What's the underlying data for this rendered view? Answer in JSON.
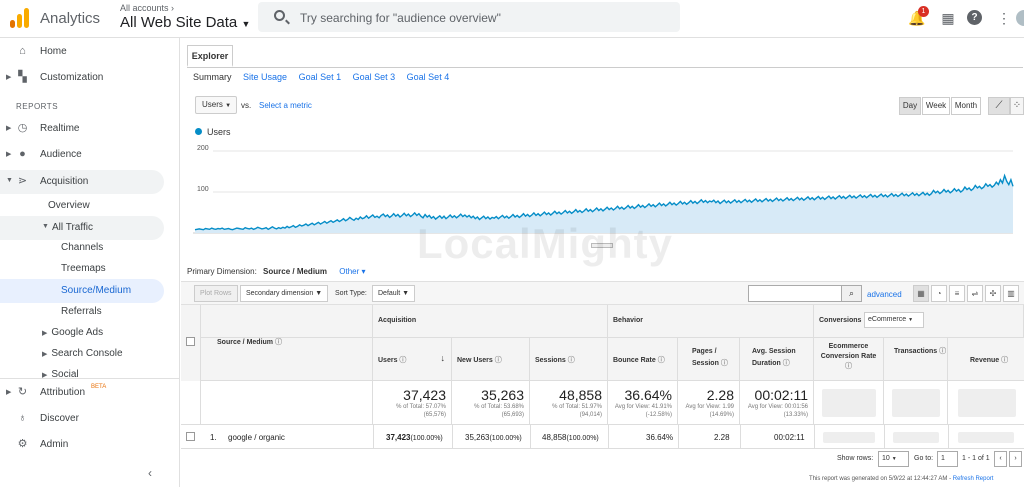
{
  "header": {
    "brand": "Analytics",
    "account_small": "All accounts ›",
    "account_name": "All Web Site Data",
    "search_placeholder": "Try searching for \"audience overview\"",
    "notification_count": "1",
    "icons": [
      "notifications-icon",
      "apps-icon",
      "help-icon",
      "more-vert-icon"
    ]
  },
  "sidebar": {
    "top_items": [
      {
        "label": "Home",
        "icon": "home-icon"
      },
      {
        "label": "Customization",
        "icon": "dashboard-icon"
      }
    ],
    "reports_heading": "REPORTS",
    "report_items": [
      {
        "label": "Realtime",
        "icon": "clock-icon"
      },
      {
        "label": "Audience",
        "icon": "person-icon"
      },
      {
        "label": "Acquisition",
        "icon": "acquisition-icon"
      }
    ],
    "acquisition_sub": {
      "overview": "Overview",
      "all_traffic": "All Traffic",
      "all_traffic_children": [
        "Channels",
        "Treemaps",
        "Source/Medium",
        "Referrals"
      ],
      "more": [
        "Google Ads",
        "Search Console",
        "Social"
      ]
    },
    "bottom_items": [
      {
        "label": "Attribution",
        "icon": "attribution-icon",
        "badge": "BETA"
      },
      {
        "label": "Discover",
        "icon": "lightbulb-icon"
      },
      {
        "label": "Admin",
        "icon": "gear-icon"
      }
    ]
  },
  "explorer": {
    "tab": "Explorer",
    "subtabs": [
      "Summary",
      "Site Usage",
      "Goal Set 1",
      "Goal Set 3",
      "Goal Set 4"
    ],
    "metric": "Users",
    "vs": "vs.",
    "select_metric": "Select a metric",
    "periods": [
      "Day",
      "Week",
      "Month"
    ],
    "active_period": "Day",
    "legend": "Users",
    "watermark": "LocalMighty"
  },
  "chart_data": {
    "type": "area",
    "title": "",
    "series": [
      {
        "name": "Users"
      }
    ],
    "y_ticks": [
      "200",
      "100"
    ],
    "ylim": [
      0,
      200
    ],
    "color": "#058dc7",
    "fill": "#d7eaf7",
    "values": [
      8,
      9,
      10,
      9,
      8,
      11,
      10,
      9,
      12,
      10,
      9,
      11,
      10,
      12,
      9,
      10,
      11,
      9,
      8,
      10,
      12,
      11,
      10,
      9,
      13,
      11,
      10,
      12,
      9,
      11,
      14,
      12,
      10,
      11,
      13,
      9,
      12,
      15,
      12,
      10,
      13,
      11,
      14,
      12,
      16,
      13,
      15,
      18,
      14,
      16,
      20,
      17,
      19,
      22,
      18,
      21,
      24,
      20,
      23,
      26,
      22,
      25,
      28,
      24,
      27,
      30,
      26,
      29,
      32,
      28,
      31,
      35,
      30,
      33,
      38,
      34,
      31,
      36,
      33,
      39,
      35,
      37,
      42,
      36,
      40,
      44,
      38,
      41,
      37,
      43,
      46,
      40,
      44,
      38,
      42,
      47,
      41,
      45,
      39,
      43,
      48,
      42,
      46,
      40,
      44,
      49,
      43,
      47,
      41,
      37,
      45,
      39,
      43,
      36,
      40,
      34,
      38,
      42,
      36,
      41,
      35,
      39,
      44,
      38,
      42,
      37,
      41,
      46,
      40,
      44,
      39,
      43,
      37,
      41,
      35,
      39,
      33,
      37,
      41,
      35,
      39,
      34,
      38,
      36,
      40,
      35,
      39,
      43,
      37,
      41,
      36,
      40,
      45,
      39,
      43,
      38,
      42,
      47,
      41,
      45,
      40,
      44,
      49,
      43,
      47,
      42,
      46,
      51,
      45,
      49,
      44,
      48,
      53,
      47,
      51,
      46,
      50,
      55,
      49,
      53,
      48,
      52,
      57,
      51,
      55,
      50,
      54,
      59,
      53,
      57,
      52,
      56,
      61,
      55,
      59,
      54,
      58,
      63,
      57,
      61,
      56,
      60,
      65,
      59,
      63,
      58,
      62,
      67,
      61,
      65,
      60,
      64,
      69,
      63,
      67,
      62,
      66,
      71,
      65,
      69,
      64,
      68,
      73,
      67,
      71,
      66,
      70,
      75,
      69,
      73,
      68,
      72,
      77,
      71,
      75,
      70,
      74,
      79,
      73,
      77,
      72,
      76,
      81,
      75,
      79,
      74,
      78,
      76,
      80,
      74,
      78,
      72,
      76,
      80,
      74,
      78,
      73,
      77,
      81,
      75,
      79,
      74,
      78,
      82,
      76,
      80,
      75,
      79,
      83,
      77,
      81,
      76,
      80,
      84,
      78,
      82,
      77,
      81,
      85,
      79,
      83,
      78,
      82,
      86,
      80,
      84,
      79,
      83,
      87,
      81,
      85,
      80,
      84,
      88,
      82,
      86,
      81,
      85,
      89,
      83,
      87,
      82,
      86,
      90,
      84,
      88,
      83,
      87,
      91,
      85,
      89,
      84,
      88,
      92,
      86,
      90,
      85,
      89,
      93,
      87,
      91,
      86,
      90,
      94,
      88,
      92,
      87,
      91,
      95,
      89,
      93,
      88,
      92,
      96,
      90,
      94,
      89,
      93,
      97,
      91,
      95,
      90,
      94,
      98,
      92,
      96,
      91,
      95,
      99,
      93,
      97,
      92,
      96,
      104,
      98,
      102,
      96,
      100,
      106,
      100,
      104,
      98,
      102,
      108,
      102,
      106,
      100,
      104,
      112,
      106,
      110,
      104,
      108,
      116,
      110,
      114,
      108,
      112,
      120,
      114,
      118,
      112,
      116,
      124,
      118,
      130,
      122,
      140,
      126,
      118,
      130,
      114
    ]
  },
  "dimensions": {
    "label": "Primary Dimension:",
    "current": "Source / Medium",
    "other": "Other ▾"
  },
  "toolbar": {
    "plot_rows": "Plot Rows",
    "secondary_dimension": "Secondary dimension",
    "sort_type_label": "Sort Type:",
    "sort_type_value": "Default",
    "advanced": "advanced"
  },
  "table": {
    "dim_header": "Source / Medium",
    "groups": {
      "acquisition": "Acquisition",
      "behavior": "Behavior",
      "conversions": "Conversions",
      "conversions_select": "eCommerce"
    },
    "columns": [
      "Users",
      "New Users",
      "Sessions",
      "Bounce Rate",
      "Pages / Session",
      "Avg. Session Duration",
      "Ecommerce Conversion Rate",
      "Transactions",
      "Revenue"
    ],
    "totals": [
      {
        "value": "37,423",
        "sub": "% of Total: 57.07% (65,576)"
      },
      {
        "value": "35,263",
        "sub": "% of Total: 53.68% (65,693)"
      },
      {
        "value": "48,858",
        "sub": "% of Total: 51.97% (94,014)"
      },
      {
        "value": "36.64%",
        "sub": "Avg for View: 41.91% (-12.58%)"
      },
      {
        "value": "2.28",
        "sub": "Avg for View: 1.99 (14.69%)"
      },
      {
        "value": "00:02:11",
        "sub": "Avg for View: 00:01:56 (13.33%)"
      }
    ],
    "rows": [
      {
        "index": "1.",
        "name": "google / organic",
        "users": "37,423",
        "users_pct": "(100.00%)",
        "new_users": "35,263",
        "new_users_pct": "(100.00%)",
        "sessions": "48,858",
        "sessions_pct": "(100.00%)",
        "bounce": "36.64%",
        "pages": "2.28",
        "duration": "00:02:11"
      }
    ]
  },
  "pagination": {
    "show_rows_label": "Show rows:",
    "show_rows_value": "10",
    "goto_label": "Go to:",
    "goto_value": "1",
    "range": "1 - 1 of 1"
  },
  "generated": {
    "text": "This report was generated on 5/9/22 at 12:44:27 AM -",
    "link": "Refresh Report"
  }
}
